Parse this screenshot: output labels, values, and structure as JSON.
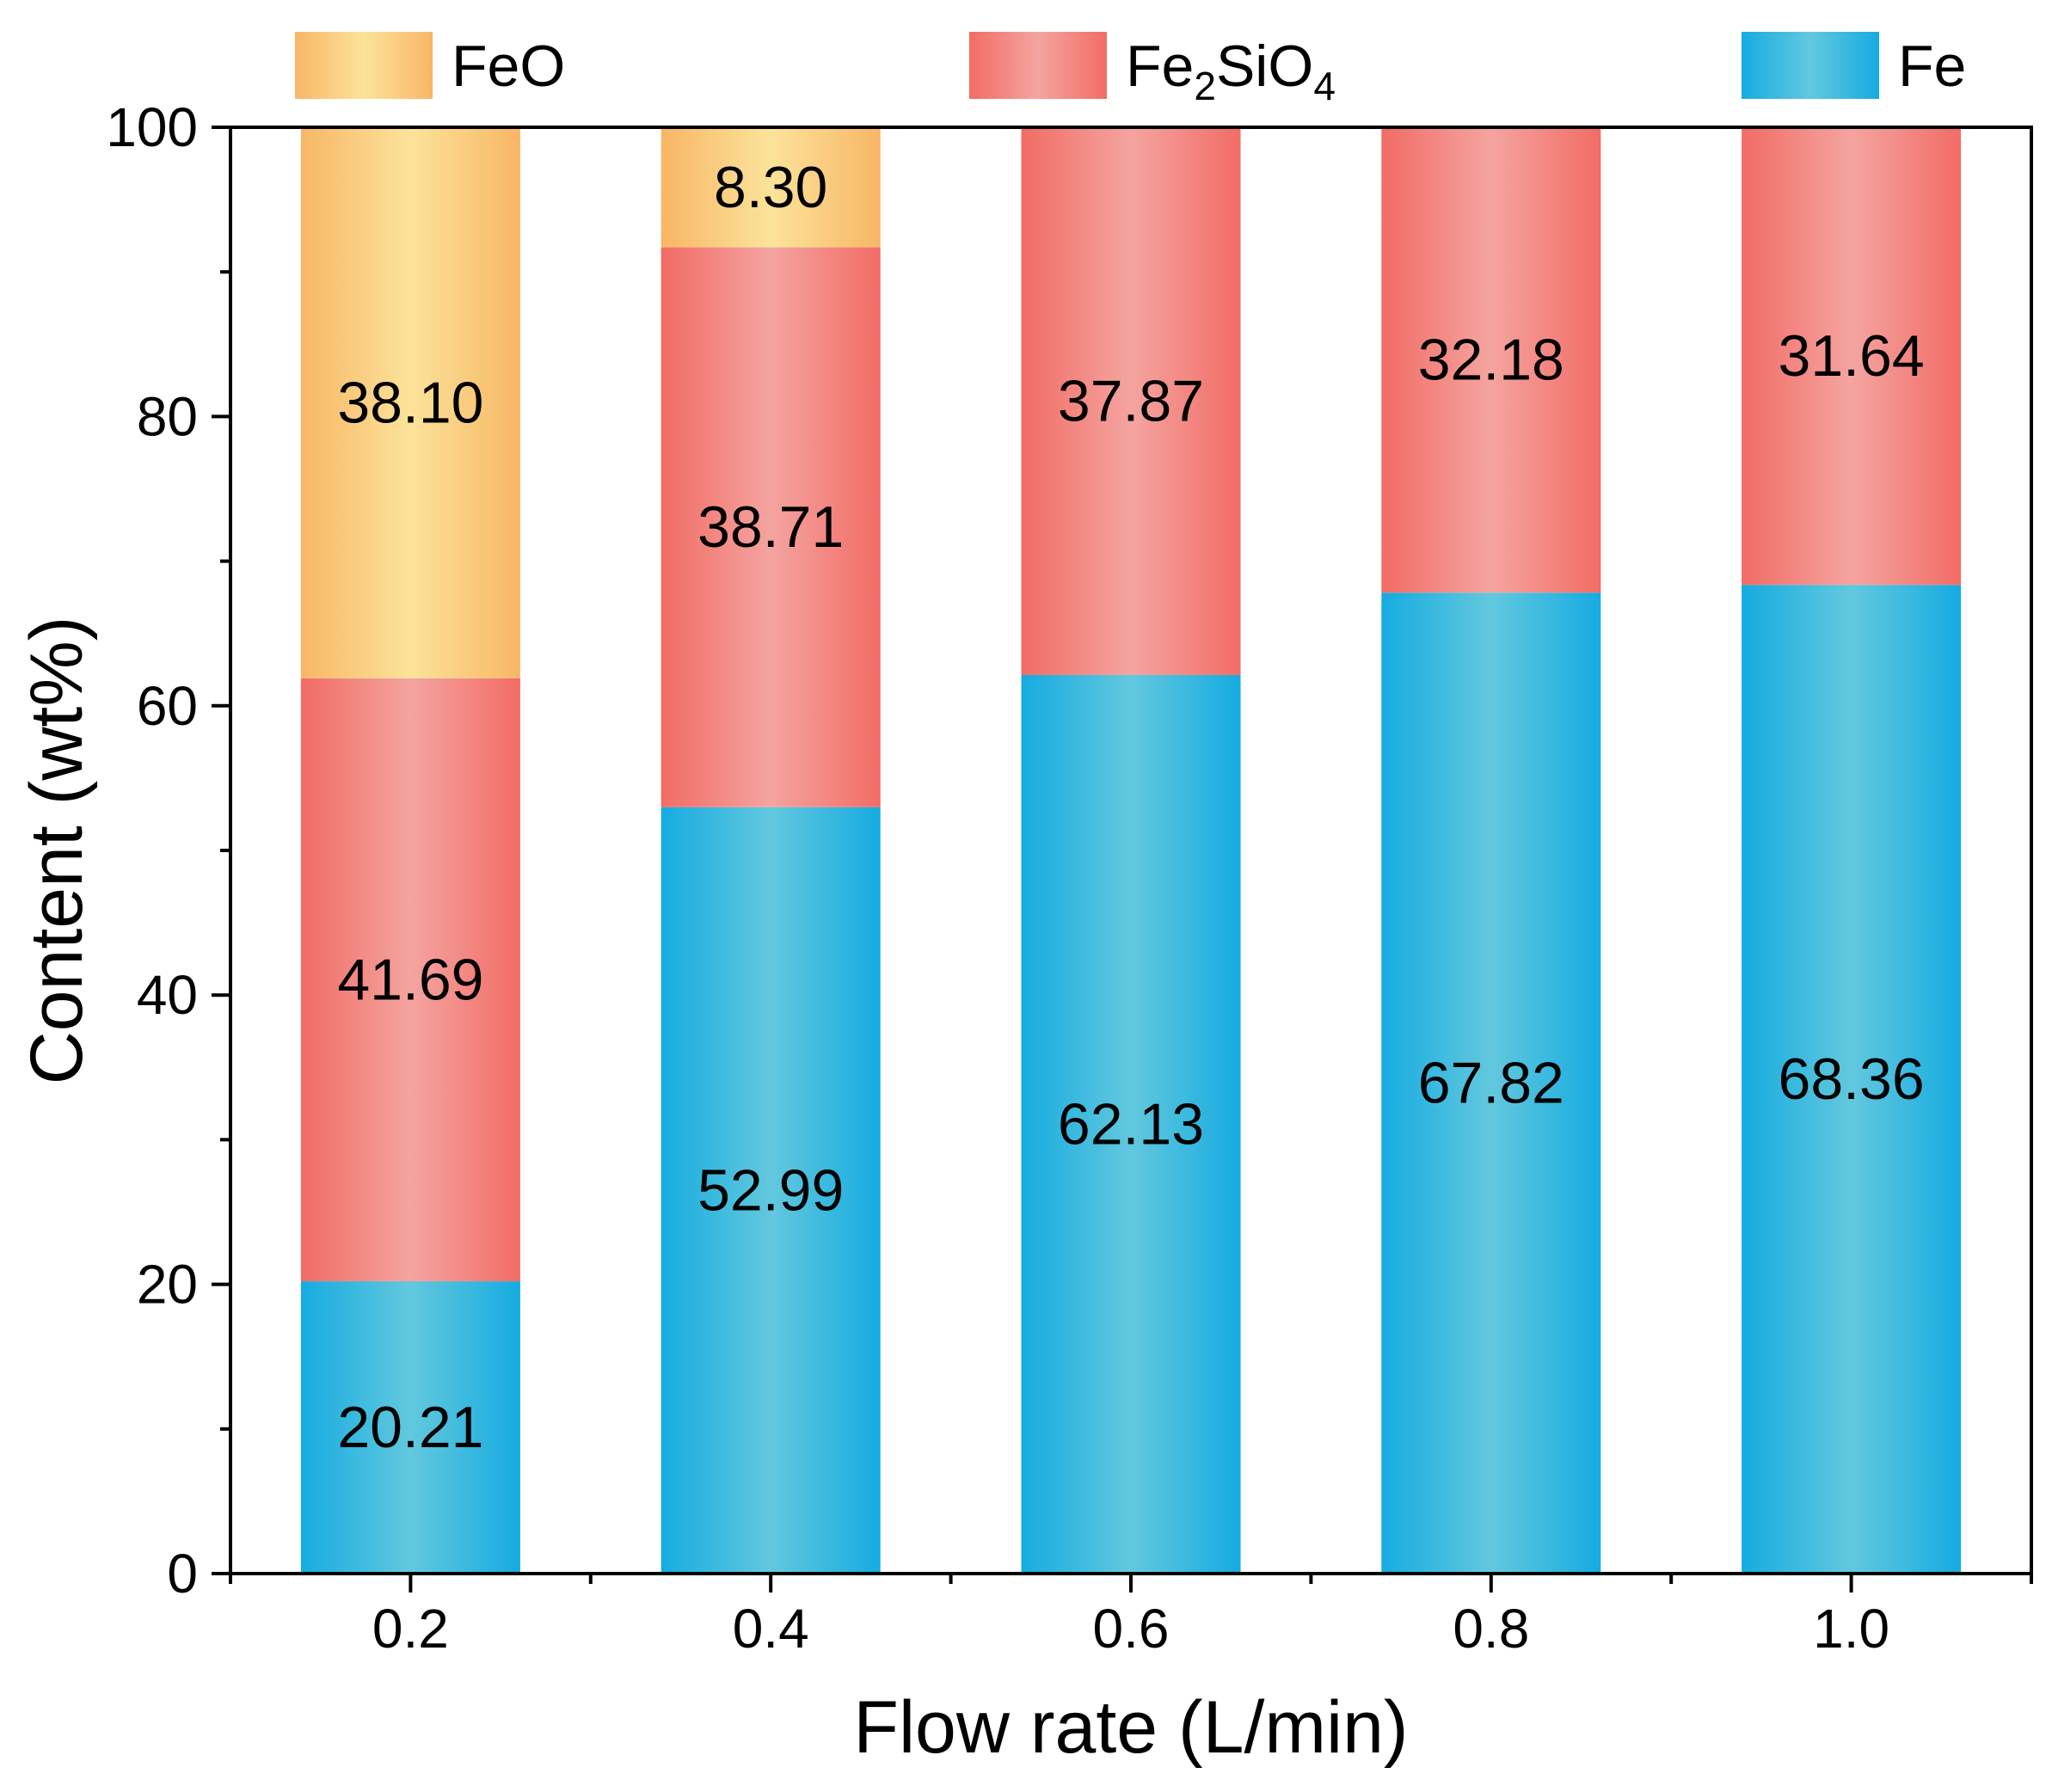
{
  "chart_data": {
    "type": "bar",
    "stacked": true,
    "categories": [
      "0.2",
      "0.4",
      "0.6",
      "0.8",
      "1.0"
    ],
    "series": [
      {
        "name": "Fe",
        "key": "fe",
        "values": [
          20.21,
          52.99,
          62.13,
          67.82,
          68.36
        ],
        "labels": [
          "20.21",
          "52.99",
          "62.13",
          "67.82",
          "68.36"
        ],
        "color_edge": "#16ABE0",
        "color_center": "#62C8DE"
      },
      {
        "name": "Fe2SiO4",
        "legend_parts": {
          "base": "Fe",
          "sub1": "2",
          "mid": "SiO",
          "sub2": "4"
        },
        "key": "fe2sio4",
        "values": [
          41.69,
          38.71,
          37.87,
          32.18,
          31.64
        ],
        "labels": [
          "41.69",
          "38.71",
          "37.87",
          "32.18",
          "31.64"
        ],
        "color_edge": "#F26C65",
        "color_center": "#F4A4A0"
      },
      {
        "name": "FeO",
        "key": "feo",
        "values": [
          38.1,
          8.3,
          0,
          0,
          0
        ],
        "labels": [
          "38.10",
          "8.30",
          "",
          "",
          ""
        ],
        "color_edge": "#F8B666",
        "color_center": "#FBE39A"
      }
    ],
    "xlabel": "Flow rate (L/min)",
    "ylabel": "Content (wt%)",
    "ylim": [
      0,
      100
    ],
    "yticks": [
      "0",
      "20",
      "40",
      "60",
      "80",
      "100"
    ],
    "legend": [
      "FeO",
      "Fe2SiO4",
      "Fe"
    ],
    "legend_placement": "top"
  }
}
